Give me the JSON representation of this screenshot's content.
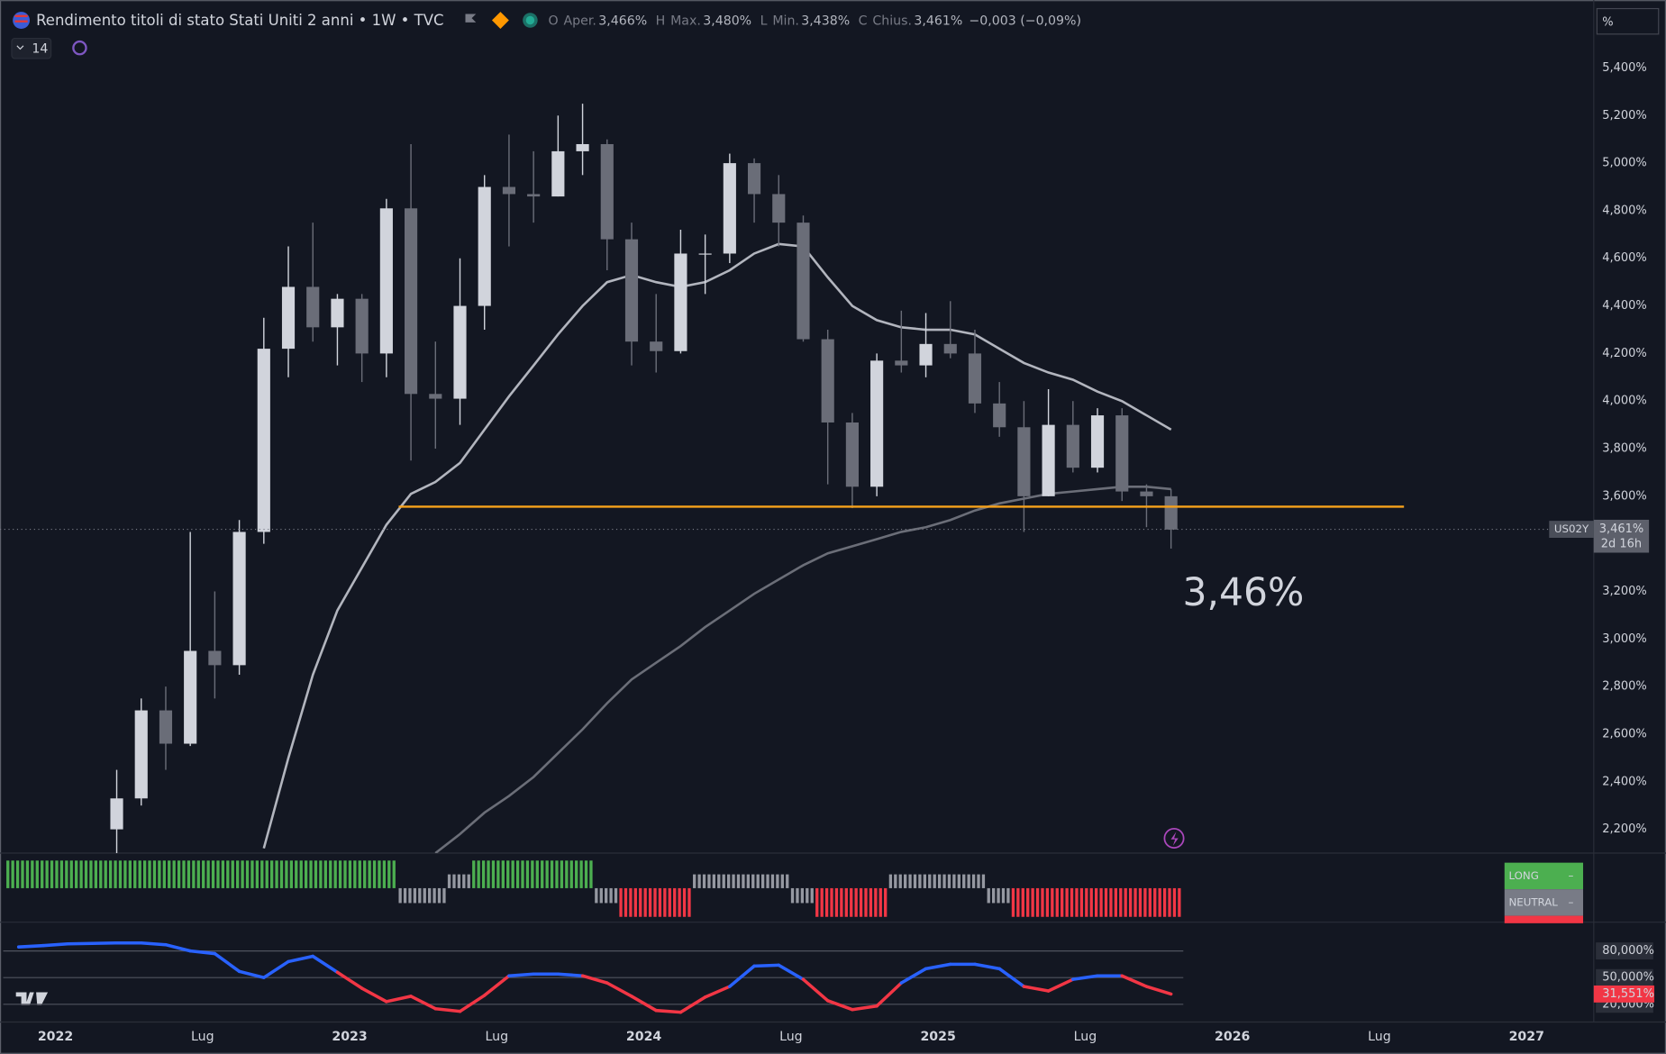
{
  "chart_data": [
    {
      "type": "candlestick",
      "title": "Rendimento titoli di stato Stati Uniti 2 anni • 1W • TVC",
      "ohlc_legend": [
        {
          "key": "O",
          "name": "Aper.",
          "value": 3.466,
          "label": "3,466%"
        },
        {
          "key": "H",
          "name": "Max.",
          "value": 3.48,
          "label": "3,480%"
        },
        {
          "key": "L",
          "name": "Min.",
          "value": 3.438,
          "label": "3,438%"
        },
        {
          "key": "C",
          "name": "Chius.",
          "value": 3.461,
          "label": "3,461%"
        }
      ],
      "change": "−0,003 (−0,09%)",
      "indicator_count": "14",
      "scale_mode": "%",
      "x": [
        "2022-03",
        "2022-04",
        "2022-05",
        "2022-06",
        "2022-07",
        "2022-08",
        "2022-09",
        "2022-10",
        "2022-11",
        "2022-12",
        "2023-01",
        "2023-02",
        "2023-03",
        "2023-04",
        "2023-05",
        "2023-06",
        "2023-07",
        "2023-08",
        "2023-09",
        "2023-10",
        "2023-11",
        "2023-12",
        "2024-01",
        "2024-02",
        "2024-03",
        "2024-04",
        "2024-05",
        "2024-06",
        "2024-07",
        "2024-08",
        "2024-09",
        "2024-10",
        "2024-11",
        "2024-12",
        "2025-01",
        "2025-02",
        "2025-03",
        "2025-04",
        "2025-05",
        "2025-06",
        "2025-07",
        "2025-08",
        "2025-09",
        "2025-10"
      ],
      "open": [
        2.2,
        2.33,
        2.7,
        2.56,
        2.95,
        2.89,
        3.45,
        4.22,
        4.48,
        4.31,
        4.43,
        4.2,
        4.81,
        4.03,
        4.01,
        4.4,
        4.9,
        4.87,
        4.86,
        5.05,
        5.08,
        4.68,
        4.25,
        4.21,
        4.62,
        4.62,
        5.0,
        4.87,
        4.75,
        4.26,
        3.91,
        3.64,
        4.17,
        4.15,
        4.24,
        4.2,
        3.99,
        3.89,
        3.6,
        3.9,
        3.72,
        3.94,
        3.62,
        3.6
      ],
      "high": [
        2.45,
        2.75,
        2.8,
        3.45,
        3.2,
        3.5,
        4.35,
        4.65,
        4.75,
        4.45,
        4.45,
        4.85,
        5.08,
        4.25,
        4.6,
        4.95,
        5.12,
        5.05,
        5.2,
        5.25,
        5.1,
        4.75,
        4.45,
        4.72,
        4.7,
        5.04,
        5.02,
        4.95,
        4.78,
        4.3,
        3.95,
        4.2,
        4.38,
        4.37,
        4.42,
        4.3,
        4.08,
        4.0,
        4.05,
        4.0,
        3.97,
        3.97,
        3.65,
        3.63
      ],
      "low": [
        2.1,
        2.3,
        2.45,
        2.55,
        2.75,
        2.85,
        3.4,
        4.1,
        4.25,
        4.15,
        4.08,
        4.1,
        3.75,
        3.8,
        3.9,
        4.3,
        4.65,
        4.75,
        4.86,
        4.95,
        4.55,
        4.15,
        4.12,
        4.2,
        4.45,
        4.58,
        4.75,
        4.65,
        4.25,
        3.65,
        3.55,
        3.6,
        4.12,
        4.1,
        4.18,
        3.95,
        3.85,
        3.45,
        3.6,
        3.7,
        3.7,
        3.58,
        3.47,
        3.38
      ],
      "close": [
        2.33,
        2.7,
        2.56,
        2.95,
        2.89,
        3.45,
        4.22,
        4.48,
        4.31,
        4.43,
        4.2,
        4.81,
        4.03,
        4.01,
        4.4,
        4.9,
        4.87,
        4.86,
        5.05,
        5.08,
        4.68,
        4.25,
        4.21,
        4.62,
        4.62,
        5.0,
        4.87,
        4.75,
        4.26,
        3.91,
        3.64,
        4.17,
        4.15,
        4.24,
        4.2,
        3.99,
        3.89,
        3.6,
        3.9,
        3.72,
        3.94,
        3.62,
        3.6,
        3.46
      ],
      "up_color": "#d1d4dc",
      "down_color": "#6a6d78",
      "moving_averages": [
        {
          "color": "#b2b5be",
          "values": [
            null,
            null,
            null,
            null,
            null,
            null,
            2.12,
            2.5,
            2.85,
            3.12,
            3.3,
            3.48,
            3.61,
            3.66,
            3.74,
            3.88,
            4.02,
            4.15,
            4.28,
            4.4,
            4.5,
            4.53,
            4.5,
            4.48,
            4.5,
            4.55,
            4.62,
            4.66,
            4.65,
            4.52,
            4.4,
            4.34,
            4.31,
            4.3,
            4.3,
            4.28,
            4.22,
            4.16,
            4.12,
            4.09,
            4.04,
            4.0,
            3.94,
            3.88
          ]
        },
        {
          "color": "#6b6e78",
          "values": [
            null,
            null,
            null,
            null,
            null,
            null,
            null,
            null,
            null,
            null,
            null,
            null,
            null,
            2.1,
            2.18,
            2.27,
            2.34,
            2.42,
            2.52,
            2.62,
            2.73,
            2.83,
            2.9,
            2.97,
            3.05,
            3.12,
            3.19,
            3.25,
            3.31,
            3.36,
            3.39,
            3.42,
            3.45,
            3.47,
            3.5,
            3.54,
            3.57,
            3.59,
            3.61,
            3.62,
            3.63,
            3.64,
            3.64,
            3.63
          ]
        }
      ],
      "level": {
        "value": 3.556,
        "from": "2023-03",
        "to": "2026-08",
        "color": "#f7a21b"
      },
      "last_price": {
        "value": 3.461,
        "label": "3,461%",
        "symbol": "US02Y",
        "countdown": "2d 16h"
      },
      "annotation": {
        "text": "3,46%",
        "color": "#f23645"
      },
      "xlim": [
        "2021-11",
        "2027-04"
      ],
      "xticks": [
        {
          "value": "2022-01",
          "label": "2022"
        },
        {
          "value": "2022-07",
          "label": "Lug"
        },
        {
          "value": "2023-01",
          "label": "2023"
        },
        {
          "value": "2023-07",
          "label": "Lug"
        },
        {
          "value": "2024-01",
          "label": "2024"
        },
        {
          "value": "2024-07",
          "label": "Lug"
        },
        {
          "value": "2025-01",
          "label": "2025"
        },
        {
          "value": "2025-07",
          "label": "Lug"
        },
        {
          "value": "2026-01",
          "label": "2026"
        },
        {
          "value": "2026-07",
          "label": "Lug"
        },
        {
          "value": "2027-01",
          "label": "2027"
        }
      ],
      "ylim": [
        2.1,
        5.663
      ],
      "yticks": [
        {
          "value": 2.2,
          "label": "2,200%"
        },
        {
          "value": 2.4,
          "label": "2,400%"
        },
        {
          "value": 2.6,
          "label": "2,600%"
        },
        {
          "value": 2.8,
          "label": "2,800%"
        },
        {
          "value": 3.0,
          "label": "3,000%"
        },
        {
          "value": 3.2,
          "label": "3,200%"
        },
        {
          "value": 3.4,
          "label": "3,400%"
        },
        {
          "value": 3.6,
          "label": "3,600%"
        },
        {
          "value": 3.8,
          "label": "3,800%"
        },
        {
          "value": 4.0,
          "label": "4,000%"
        },
        {
          "value": 4.2,
          "label": "4,200%"
        },
        {
          "value": 4.4,
          "label": "4,400%"
        },
        {
          "value": 4.6,
          "label": "4,600%"
        },
        {
          "value": 4.8,
          "label": "4,800%"
        },
        {
          "value": 5.0,
          "label": "5,000%"
        },
        {
          "value": 5.2,
          "label": "5,200%"
        },
        {
          "value": 5.4,
          "label": "5,400%"
        }
      ]
    },
    {
      "type": "signal",
      "runs": [
        {
          "state": "long",
          "from": "2021-11",
          "to": "2023-03"
        },
        {
          "state": "neutral-down",
          "from": "2023-03",
          "to": "2023-05"
        },
        {
          "state": "neutral-up",
          "from": "2023-05",
          "to": "2023-06"
        },
        {
          "state": "long",
          "from": "2023-06",
          "to": "2023-11"
        },
        {
          "state": "neutral-down",
          "from": "2023-11",
          "to": "2023-12"
        },
        {
          "state": "short",
          "from": "2023-12",
          "to": "2024-03"
        },
        {
          "state": "neutral-up",
          "from": "2024-03",
          "to": "2024-07"
        },
        {
          "state": "neutral-down",
          "from": "2024-07",
          "to": "2024-08"
        },
        {
          "state": "short",
          "from": "2024-08",
          "to": "2024-11"
        },
        {
          "state": "neutral-up",
          "from": "2024-11",
          "to": "2025-03"
        },
        {
          "state": "neutral-down",
          "from": "2025-03",
          "to": "2025-04"
        },
        {
          "state": "short",
          "from": "2025-04",
          "to": "2025-11"
        }
      ],
      "colors": {
        "long": "#4caf50",
        "neutral-up": "#9598a1",
        "neutral-down": "#9598a1",
        "short": "#f23645"
      },
      "legend": [
        {
          "label": "LONG",
          "value": "–",
          "color": "#4caf50"
        },
        {
          "label": "NEUTRAL",
          "value": "–",
          "color": "#787b86"
        }
      ],
      "short_color": "#f23645"
    },
    {
      "type": "line",
      "x": [
        "2021-11",
        "2021-12",
        "2022-01",
        "2022-02",
        "2022-03",
        "2022-04",
        "2022-05",
        "2022-06",
        "2022-07",
        "2022-08",
        "2022-09",
        "2022-10",
        "2022-11",
        "2022-12",
        "2023-01",
        "2023-02",
        "2023-03",
        "2023-04",
        "2023-05",
        "2023-06",
        "2023-07",
        "2023-08",
        "2023-09",
        "2023-10",
        "2023-11",
        "2023-12",
        "2024-01",
        "2024-02",
        "2024-03",
        "2024-04",
        "2024-05",
        "2024-06",
        "2024-07",
        "2024-08",
        "2024-09",
        "2024-10",
        "2024-11",
        "2024-12",
        "2025-01",
        "2025-02",
        "2025-03",
        "2025-04",
        "2025-05",
        "2025-06",
        "2025-07",
        "2025-08",
        "2025-09",
        "2025-10"
      ],
      "values": [
        84.5,
        86,
        88,
        88.5,
        89,
        89,
        87,
        80,
        77,
        57,
        50,
        68,
        74,
        56,
        38,
        23,
        29,
        15,
        12,
        30,
        52,
        54,
        54,
        52,
        44,
        29,
        13,
        11,
        28,
        40,
        63,
        64,
        48,
        24,
        14,
        18,
        44,
        60,
        65,
        65,
        60,
        40,
        35,
        48,
        52,
        52,
        40,
        31.551
      ],
      "last_label": "31,551%",
      "threshold": 50,
      "colors": {
        "above": "#2962ff",
        "below": "#f23645"
      },
      "ylim": [
        0,
        110
      ],
      "yticks": [
        {
          "value": 20,
          "label": "20,000%"
        },
        {
          "value": 50,
          "label": "50,000%"
        },
        {
          "value": 80,
          "label": "80,000%"
        }
      ]
    }
  ]
}
